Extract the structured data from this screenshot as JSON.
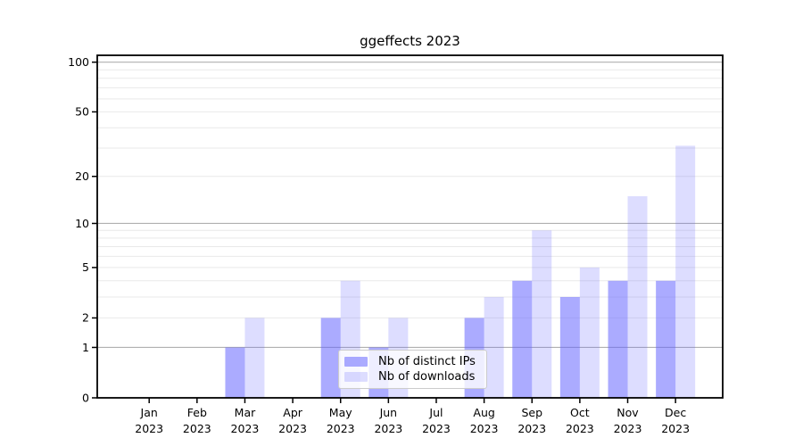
{
  "chart_data": {
    "type": "bar",
    "title": "ggeffects 2023",
    "categories": [
      "Jan 2023",
      "Feb 2023",
      "Mar 2023",
      "Apr 2023",
      "May 2023",
      "Jun 2023",
      "Jul 2023",
      "Aug 2023",
      "Sep 2023",
      "Oct 2023",
      "Nov 2023",
      "Dec 2023"
    ],
    "series": [
      {
        "name": "Nb of distinct IPs",
        "color": "#6666ff",
        "opacity": 0.55,
        "values": [
          0,
          0,
          1,
          0,
          2,
          1,
          0,
          2,
          4,
          3,
          4,
          4
        ]
      },
      {
        "name": "Nb of downloads",
        "color": "#6666ff",
        "opacity": 0.22,
        "values": [
          0,
          0,
          2,
          0,
          4,
          2,
          0,
          3,
          9,
          5,
          15,
          31
        ]
      }
    ],
    "yscale": "log1p",
    "ylim": [
      0,
      110
    ],
    "ytick_labels": [
      0,
      1,
      2,
      5,
      10,
      20,
      50,
      100
    ],
    "grid": "on",
    "grid_major": [
      1,
      10,
      100
    ],
    "grid_minor": [
      2,
      3,
      4,
      5,
      6,
      7,
      8,
      9,
      20,
      30,
      40,
      50,
      60,
      70,
      80,
      90
    ],
    "legend_position": "inside-lower-center",
    "colors": {
      "axis": "#000000",
      "tick_label": "#000000",
      "grid_major": "#b0b0b0",
      "grid_minor": "#e9e9e9",
      "legend_border": "#cccccc"
    },
    "xlabel": "",
    "ylabel": ""
  }
}
